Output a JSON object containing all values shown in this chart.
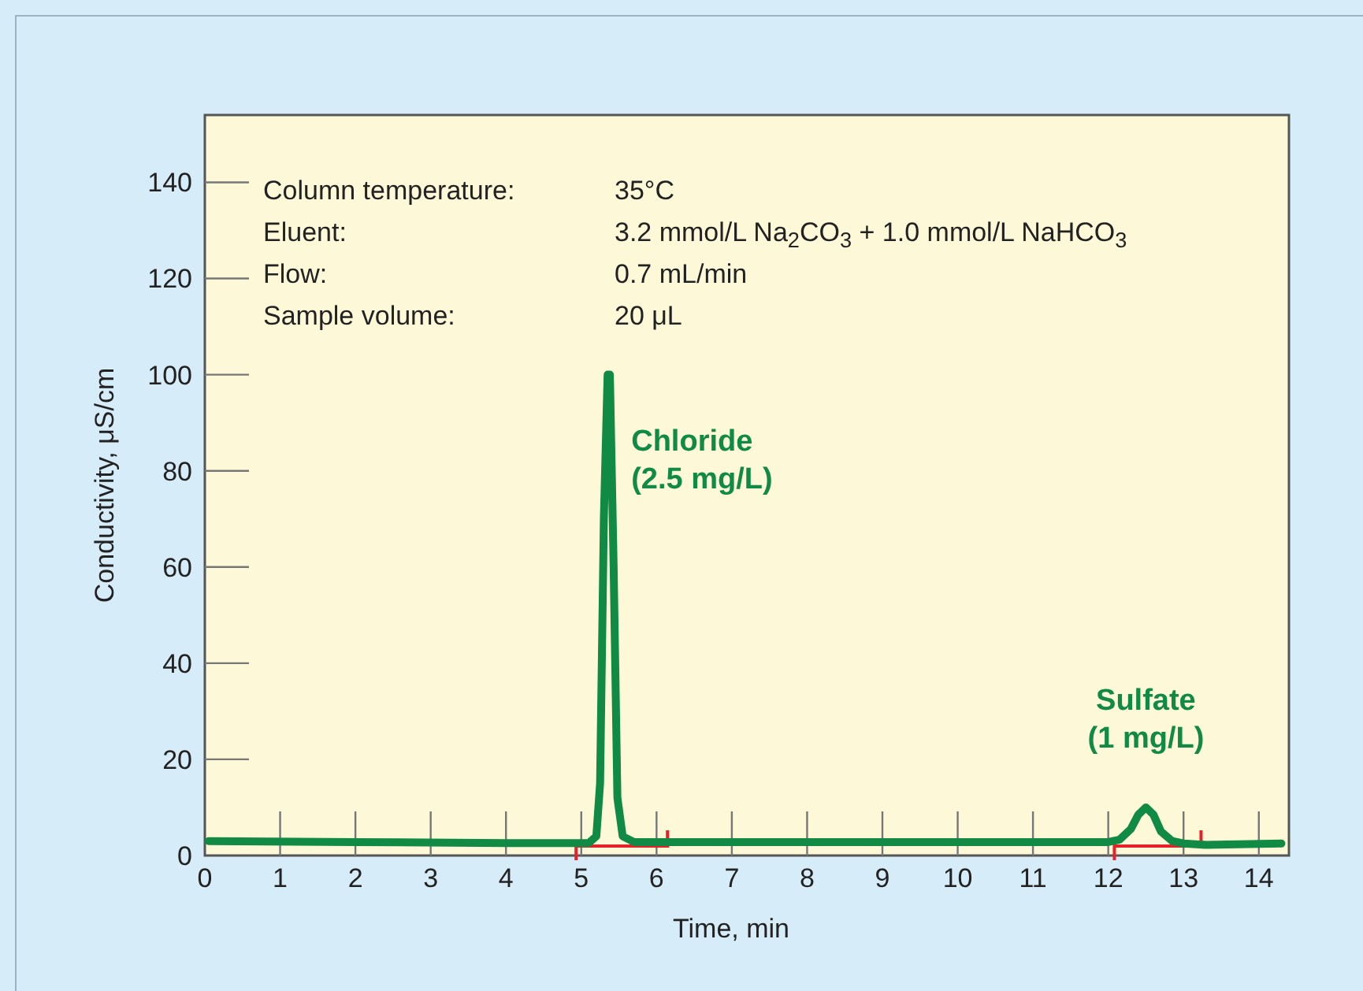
{
  "chart_data": {
    "type": "line",
    "xlabel": "Time, min",
    "ylabel": "Conductivity, μS/cm",
    "xlim": [
      0,
      14.4
    ],
    "ylim": [
      0,
      154
    ],
    "xticks": [
      0,
      1,
      2,
      3,
      4,
      5,
      6,
      7,
      8,
      9,
      10,
      11,
      12,
      13,
      14
    ],
    "yticks": [
      0,
      20,
      40,
      60,
      80,
      100,
      120,
      140
    ],
    "grid": false,
    "marker": "none",
    "line_style": "solid",
    "series": [
      {
        "color": "#108a44",
        "x": [
          0.05,
          2,
          4,
          5.1,
          5.2,
          5.25,
          5.3,
          5.35,
          5.38,
          5.43,
          5.48,
          5.55,
          5.7,
          7,
          9,
          11,
          12.0,
          12.15,
          12.3,
          12.4,
          12.5,
          12.6,
          12.7,
          12.85,
          13.0,
          13.3,
          14.3
        ],
        "values": [
          3,
          2.8,
          2.6,
          2.6,
          4,
          15,
          70,
          100,
          100,
          60,
          12,
          4,
          2.8,
          2.8,
          2.8,
          2.8,
          2.8,
          3.3,
          5.5,
          8.5,
          10,
          8.5,
          5,
          3,
          2.5,
          2.2,
          2.5
        ]
      }
    ],
    "annotations": [
      "Column temperature:",
      "35°C",
      "Eluent:",
      "3.2 mmol/L Na$_{2}$CO$_{3}$ + 1.0 mmol/L NaHCO$_{3}$",
      "Flow:",
      "0.7 mL/min",
      "Sample volume:",
      "20 μL",
      {
        "text": "Chloride\n(2.5 mg/L)",
        "x": 5.35,
        "y": 100
      },
      {
        "text": "Sulfate\n(1 mg/L)",
        "x": 12.5,
        "y": 10
      }
    ]
  }
}
